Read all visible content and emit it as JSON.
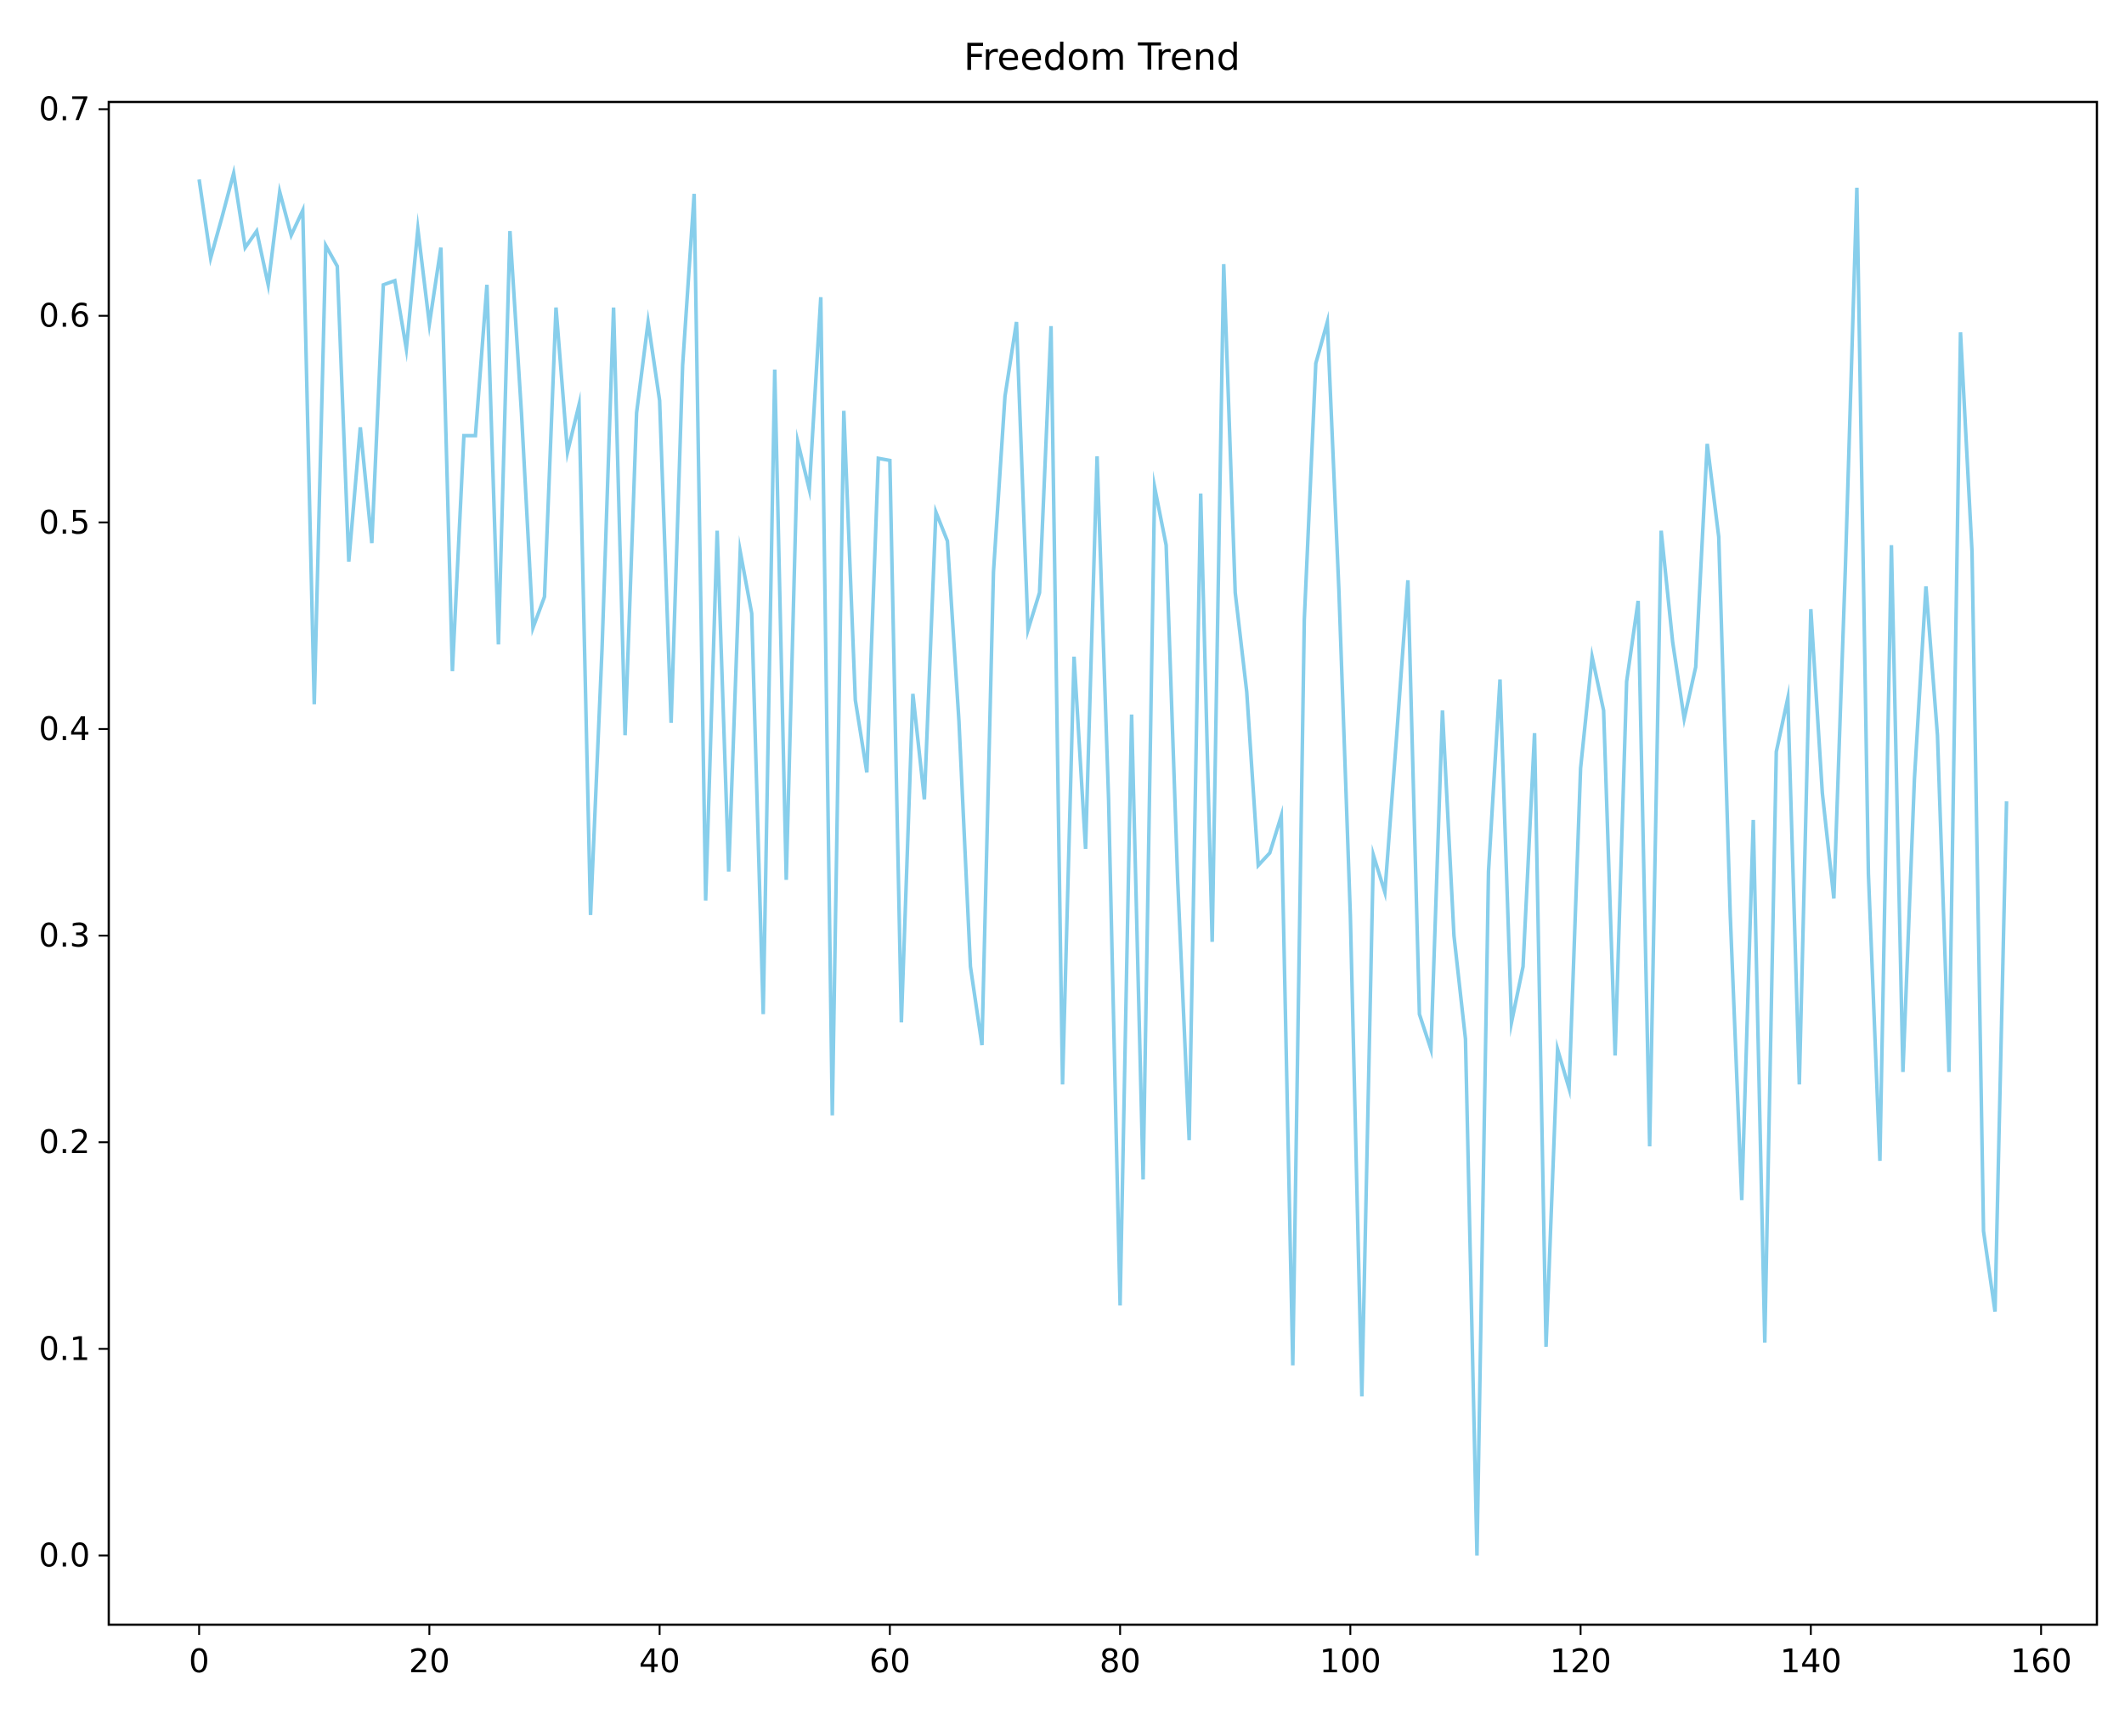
{
  "chart_data": {
    "type": "line",
    "title": "Freedom Trend",
    "xlabel": "",
    "ylabel": "",
    "xlim": [
      -7.85,
      164.85
    ],
    "ylim": [
      -0.0335,
      0.7035
    ],
    "grid": false,
    "legend": "none",
    "color": "#87ceeb",
    "x_ticks": [
      0,
      20,
      40,
      60,
      80,
      100,
      120,
      140,
      160
    ],
    "y_ticks": [
      0.0,
      0.1,
      0.2,
      0.3,
      0.4,
      0.5,
      0.6,
      0.7
    ],
    "x_tick_labels": [
      "0",
      "20",
      "40",
      "60",
      "80",
      "100",
      "120",
      "140",
      "160"
    ],
    "y_tick_labels": [
      "0.0",
      "0.1",
      "0.2",
      "0.3",
      "0.4",
      "0.5",
      "0.6",
      "0.7"
    ],
    "series": [
      {
        "values": [
          0.666,
          0.628,
          0.648,
          0.669,
          0.633,
          0.641,
          0.615,
          0.66,
          0.639,
          0.651,
          0.412,
          0.634,
          0.624,
          0.481,
          0.546,
          0.49,
          0.615,
          0.617,
          0.584,
          0.642,
          0.596,
          0.633,
          0.428,
          0.542,
          0.542,
          0.615,
          0.441,
          0.641,
          0.553,
          0.449,
          0.464,
          0.604,
          0.534,
          0.557,
          0.31,
          0.439,
          0.604,
          0.397,
          0.553,
          0.597,
          0.559,
          0.403,
          0.576,
          0.659,
          0.317,
          0.496,
          0.331,
          0.486,
          0.456,
          0.262,
          0.574,
          0.327,
          0.539,
          0.516,
          0.609,
          0.213,
          0.554,
          0.414,
          0.379,
          0.531,
          0.53,
          0.258,
          0.417,
          0.366,
          0.505,
          0.491,
          0.404,
          0.285,
          0.247,
          0.476,
          0.561,
          0.597,
          0.448,
          0.466,
          0.595,
          0.228,
          0.435,
          0.342,
          0.532,
          0.366,
          0.121,
          0.407,
          0.182,
          0.517,
          0.489,
          0.327,
          0.201,
          0.514,
          0.297,
          0.625,
          0.466,
          0.418,
          0.334,
          0.34,
          0.358,
          0.092,
          0.453,
          0.577,
          0.597,
          0.468,
          0.31,
          0.077,
          0.339,
          0.321,
          0.395,
          0.472,
          0.262,
          0.245,
          0.409,
          0.3,
          0.25,
          0.0,
          0.331,
          0.424,
          0.258,
          0.285,
          0.398,
          0.101,
          0.245,
          0.226,
          0.381,
          0.435,
          0.409,
          0.242,
          0.423,
          0.462,
          0.198,
          0.496,
          0.442,
          0.405,
          0.43,
          0.538,
          0.493,
          0.31,
          0.172,
          0.356,
          0.103,
          0.389,
          0.415,
          0.228,
          0.458,
          0.369,
          0.318,
          0.478,
          0.662,
          0.33,
          0.191,
          0.489,
          0.234,
          0.376,
          0.469,
          0.397,
          0.234,
          0.592,
          0.486,
          0.157,
          0.118,
          0.365
        ]
      }
    ]
  }
}
